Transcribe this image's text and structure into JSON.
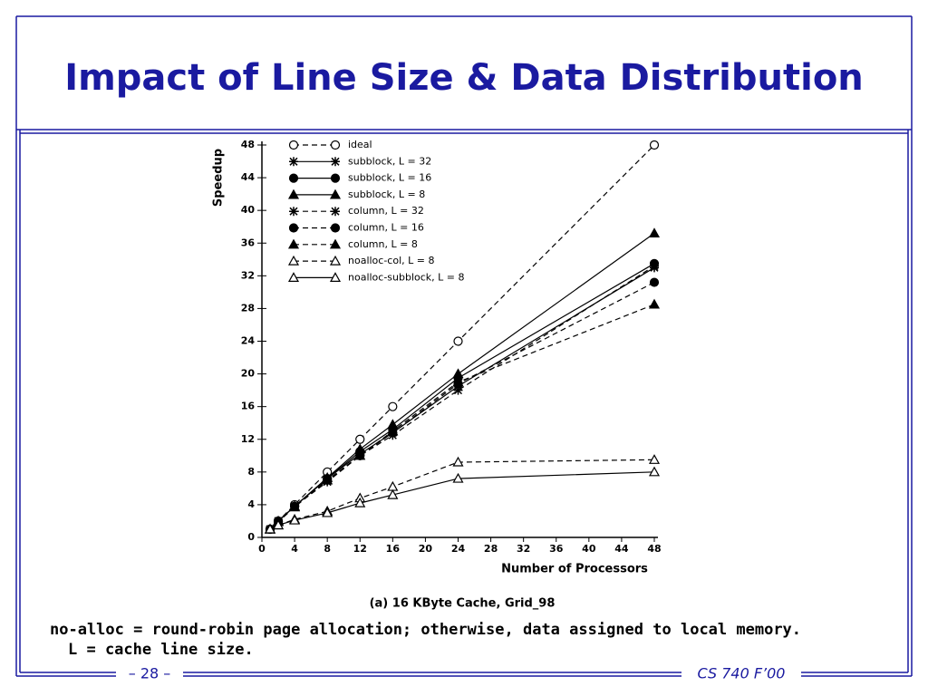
{
  "header": {
    "title": "Impact of Line Size & Data Distribution"
  },
  "chart_data": {
    "type": "line",
    "y_label": "Speedup",
    "x_label": "Number of Processors",
    "caption": "(a) 16 KByte Cache, Grid_98",
    "x": [
      1,
      2,
      4,
      8,
      12,
      16,
      24,
      48
    ],
    "xlim": [
      0,
      48
    ],
    "xticks": [
      0,
      4,
      8,
      12,
      16,
      20,
      24,
      28,
      32,
      36,
      40,
      44,
      48
    ],
    "ylim": [
      0,
      48
    ],
    "yticks": [
      0,
      4,
      8,
      12,
      16,
      20,
      24,
      28,
      32,
      36,
      40,
      44,
      48
    ],
    "legend": "top-left",
    "series": [
      {
        "name": "ideal",
        "color": "#000000",
        "dashed": true,
        "marker": "circle-open",
        "values": [
          1,
          2,
          4,
          8,
          12,
          16,
          24,
          48
        ]
      },
      {
        "name": "subblock, L = 32",
        "color": "#000000",
        "dashed": false,
        "marker": "asterisk",
        "values": [
          1,
          2,
          3.8,
          7.2,
          10.2,
          12.8,
          18.5,
          33
        ]
      },
      {
        "name": "subblock, L = 16",
        "color": "#000000",
        "dashed": false,
        "marker": "circle-filled",
        "values": [
          1,
          2,
          3.8,
          7.2,
          10.5,
          13.2,
          19.5,
          33.5
        ]
      },
      {
        "name": "subblock, L = 8",
        "color": "#000000",
        "dashed": false,
        "marker": "triangle-filled",
        "values": [
          1,
          2,
          3.8,
          7.3,
          10.8,
          13.8,
          20,
          37.2
        ]
      },
      {
        "name": "column, L = 32",
        "color": "#000000",
        "dashed": true,
        "marker": "asterisk",
        "values": [
          1,
          1.9,
          3.8,
          6.8,
          10,
          12.5,
          18,
          33.2
        ]
      },
      {
        "name": "column, L = 16",
        "color": "#000000",
        "dashed": true,
        "marker": "circle-filled",
        "values": [
          1,
          1.9,
          3.8,
          7,
          10,
          12.8,
          18.8,
          31.2
        ]
      },
      {
        "name": "column, L = 8",
        "color": "#000000",
        "dashed": true,
        "marker": "triangle-filled",
        "values": [
          1,
          1.9,
          3.7,
          7,
          10,
          13,
          19,
          28.5
        ]
      },
      {
        "name": "noalloc-col, L = 8",
        "color": "#000000",
        "dashed": true,
        "marker": "triangle-open",
        "values": [
          1,
          1.5,
          2.2,
          3.2,
          4.8,
          6.2,
          9.2,
          9.5
        ]
      },
      {
        "name": "noalloc-subblock, L = 8",
        "color": "#000000",
        "dashed": false,
        "marker": "triangle-open",
        "values": [
          1,
          1.5,
          2.1,
          3,
          4.2,
          5.2,
          7.2,
          8
        ]
      }
    ]
  },
  "note": "no-alloc = round-robin page allocation; otherwise, data assigned to local memory. L = cache line size.",
  "footer": {
    "page": "– 28 –",
    "course": "CS 740 F’00"
  }
}
